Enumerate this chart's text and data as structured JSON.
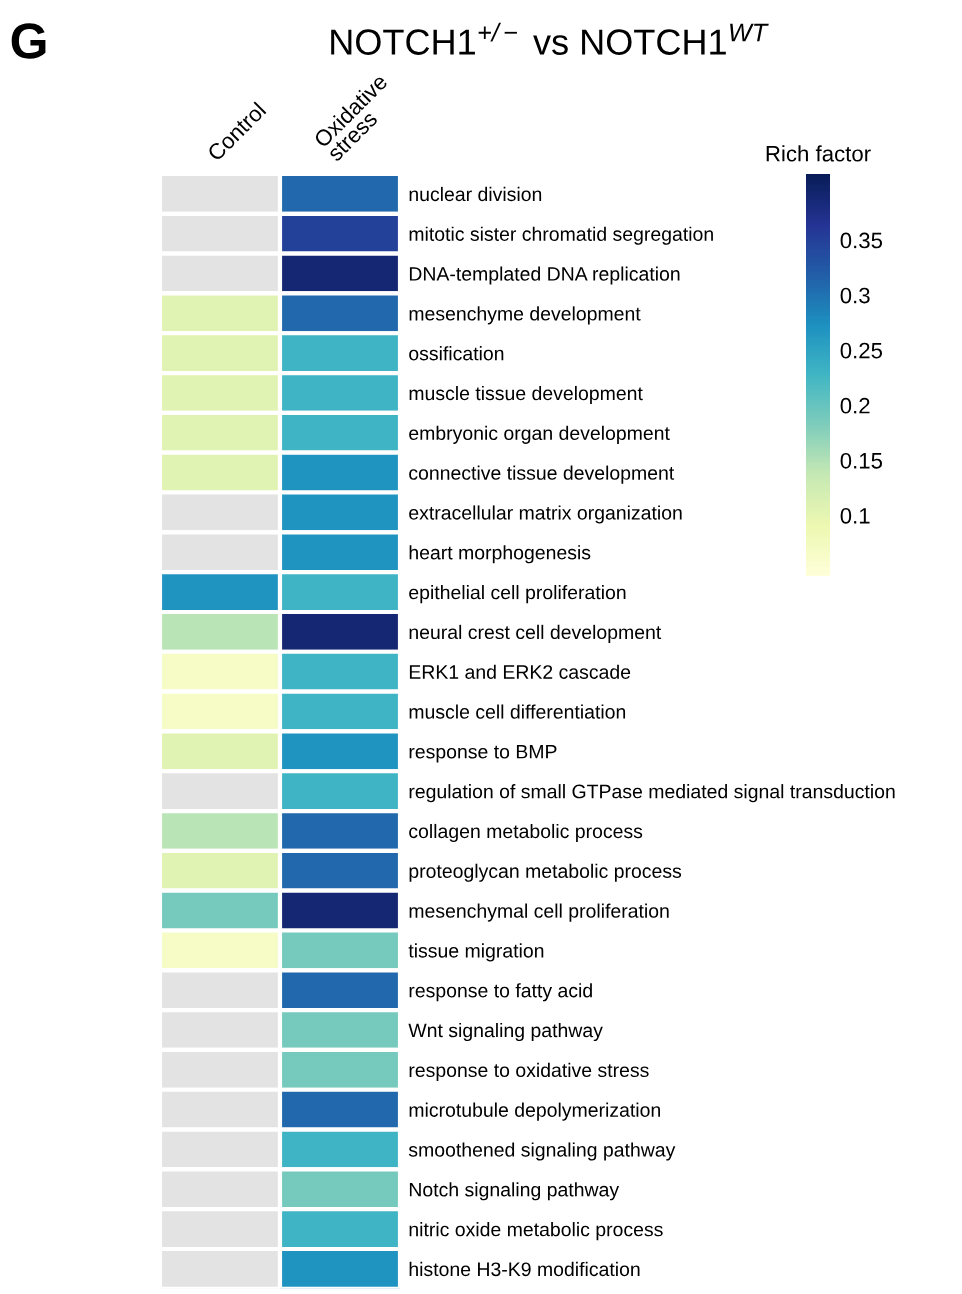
{
  "chart_data": {
    "type": "heatmap",
    "title": "NOTCH1$^{+/−}$ vs NOTCH1$^{WT}$",
    "clabel": "Rich factor",
    "annotations": [
      "G"
    ],
    "categories": [
      "Control",
      "Oxidative\nstress"
    ],
    "y_categories": [
      "nuclear division",
      "mitotic sister chromatid segregation",
      "DNA-templated DNA replication",
      "mesenchyme development",
      "ossification",
      "muscle tissue development",
      "embryonic organ development",
      "connective tissue development",
      "extracellular matrix organization",
      "heart morphogenesis",
      "epithelial cell proliferation",
      "neural crest cell development",
      "ERK1 and ERK2 cascade",
      "muscle cell differentiation",
      "response to BMP",
      "regulation of small GTPase mediated signal transduction",
      "collagen metabolic process",
      "proteoglycan metabolic process",
      "mesenchymal cell proliferation",
      "tissue migration",
      "response to fatty acid",
      "Wnt signaling pathway",
      "response to oxidative stress",
      "microtubule depolymerization",
      "smoothened signaling pathway",
      "Notch signaling pathway",
      "nitric oxide metabolic process",
      "histone H3-K9 modification"
    ],
    "cells": [
      [
        null,
        0.31
      ],
      [
        null,
        0.35
      ],
      [
        null,
        0.39
      ],
      [
        0.105,
        0.31
      ],
      [
        0.105,
        0.23
      ],
      [
        0.105,
        0.23
      ],
      [
        0.105,
        0.23
      ],
      [
        0.105,
        0.27
      ],
      [
        null,
        0.27
      ],
      [
        null,
        0.27
      ],
      [
        0.27,
        0.23
      ],
      [
        0.145,
        0.39
      ],
      [
        0.065,
        0.23
      ],
      [
        0.065,
        0.23
      ],
      [
        0.105,
        0.27
      ],
      [
        null,
        0.23
      ],
      [
        0.145,
        0.31
      ],
      [
        0.105,
        0.31
      ],
      [
        0.19,
        0.39
      ],
      [
        0.065,
        0.19
      ],
      [
        null,
        0.31
      ],
      [
        null,
        0.19
      ],
      [
        null,
        0.19
      ],
      [
        null,
        0.31
      ],
      [
        null,
        0.23
      ],
      [
        null,
        0.19
      ],
      [
        null,
        0.23
      ],
      [
        null,
        0.27
      ]
    ],
    "clim": [
      0.045,
      0.41
    ],
    "cticks": [
      0.1,
      0.15,
      0.2,
      0.25,
      0.3,
      0.35
    ]
  }
}
